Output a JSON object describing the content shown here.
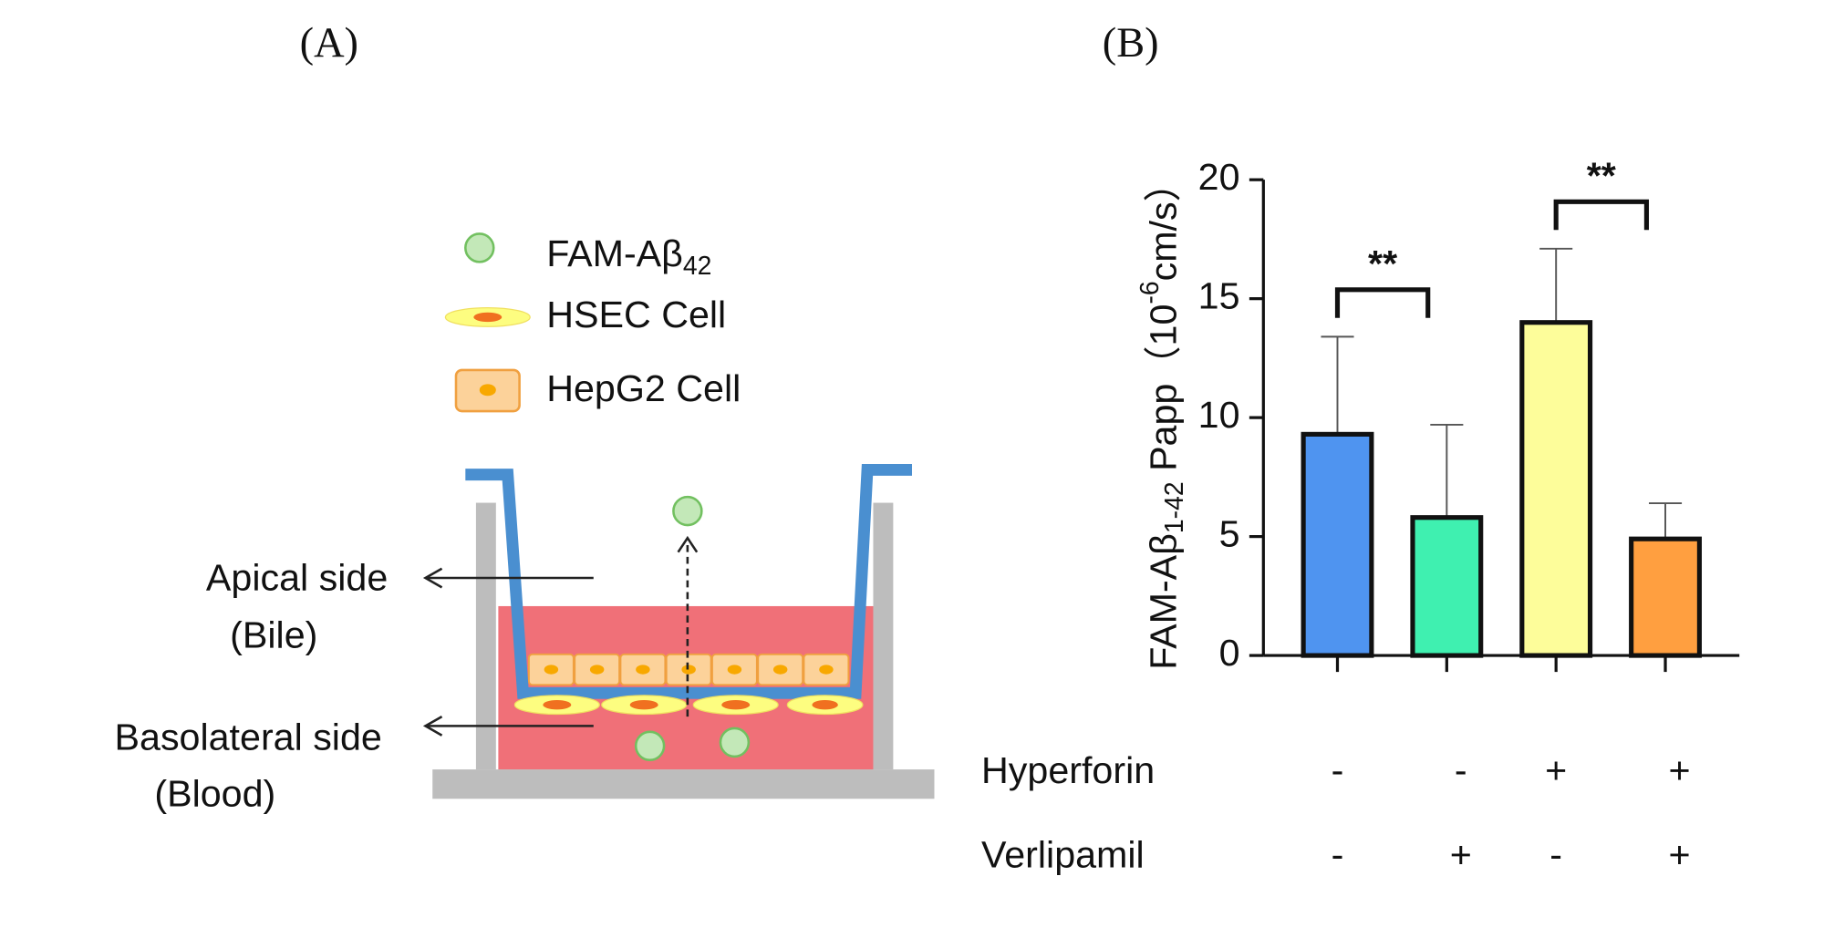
{
  "panel_a": {
    "label": "(A)",
    "legend": {
      "fam": {
        "main": "FAM-Aβ",
        "sub": "42"
      },
      "hsec": "HSEC Cell",
      "hepg2": "HepG2 Cell"
    },
    "apical": {
      "line1": "Apical side",
      "line2": "(Bile)"
    },
    "basolateral": {
      "line1": "Basolateral side",
      "line2": "(Blood)"
    }
  },
  "chart_data": {
    "type": "bar",
    "panel_label": "(B)",
    "ylabel": {
      "main": "FAM-Aβ",
      "sub": "1-42",
      "mid": " Papp（10",
      "sup": "-6",
      "end": "cm/s）"
    },
    "values": [
      9.3,
      5.8,
      14.0,
      4.9
    ],
    "errors": [
      4.1,
      3.9,
      3.1,
      1.5
    ],
    "colors": [
      "#4f94f0",
      "#3ff0b0",
      "#fdfd9a",
      "#ff9f40"
    ],
    "ylim": [
      0,
      20
    ],
    "yticks": [
      0,
      5,
      10,
      15,
      20
    ],
    "conditions": [
      {
        "name": "Hyperforin",
        "values": [
          "-",
          "-",
          "+",
          "+"
        ]
      },
      {
        "name": "Verlipamil",
        "values": [
          "-",
          "+",
          "-",
          "+"
        ]
      }
    ],
    "significance": [
      {
        "pair": [
          0,
          1
        ],
        "label": "**"
      },
      {
        "pair": [
          2,
          3
        ],
        "label": "**"
      }
    ]
  }
}
